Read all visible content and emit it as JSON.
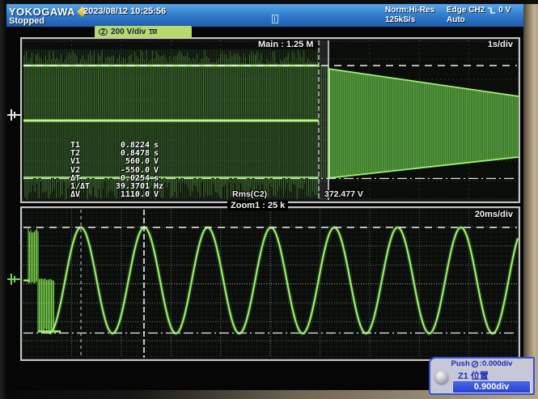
{
  "header": {
    "brand": "YOKOGAWA",
    "status": "Stopped",
    "datetime": "2023/08/12 10:25:56",
    "acquisition": {
      "mode": "Norm:Hi-Res",
      "rate": "125kS/s"
    },
    "trigger": {
      "source": "Edge CH2",
      "level": "0 V",
      "mode": "Auto",
      "slope": "falling-edge"
    }
  },
  "channel_badge": {
    "channel": "2",
    "scale": "200 V/div",
    "coupling": "1M"
  },
  "main_window": {
    "label": "Main : 1.25 M",
    "timebase": "1s/div",
    "rms_label": "Rms(C2)",
    "rms_value": "372.477 V",
    "measurements": [
      {
        "label": "T1",
        "value": "0.8224",
        "unit": "s"
      },
      {
        "label": "T2",
        "value": "0.8478",
        "unit": "s"
      },
      {
        "label": "V1",
        "value": "560.0",
        "unit": "V"
      },
      {
        "label": "V2",
        "value": "-550.0",
        "unit": "V"
      },
      {
        "label": "ΔT",
        "value": "0.0254",
        "unit": "s"
      },
      {
        "label": "1/ΔT",
        "value": "39.3701",
        "unit": "Hz"
      },
      {
        "label": "ΔV",
        "value": "1110.0",
        "unit": "V"
      }
    ]
  },
  "zoom_window": {
    "label": "Zoom1 : 25 k",
    "timebase": "20ms/div"
  },
  "popup": {
    "push_prefix": "Push",
    "push_suffix": ":0.000div",
    "knob_label": "Z1 位置",
    "position_value": "0.900div"
  },
  "waveform": {
    "type": "oscilloscope-traces",
    "channel_color": "#7cd94e",
    "main": {
      "description": "dense full-amplitude band before zoom region, decaying envelope after",
      "top_cursor_v": 560.0,
      "bottom_cursor_v": -550.0,
      "timebase": "1s/div"
    },
    "zoom": {
      "description": "sine wave preceded by switching transient",
      "period_s": 0.0254,
      "frequency_hz": 39.3701,
      "timebase": "20ms/div"
    }
  }
}
